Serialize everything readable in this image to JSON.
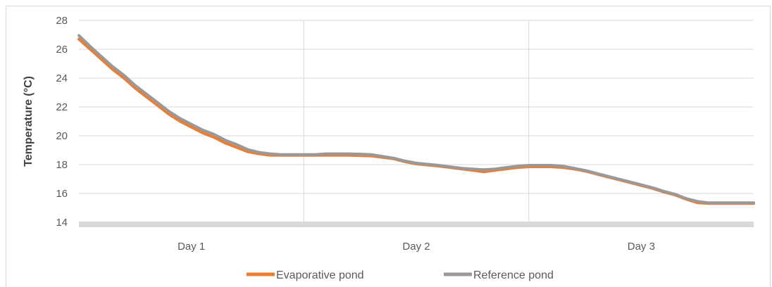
{
  "chart_data": {
    "type": "line",
    "title": "",
    "xlabel": "",
    "ylabel": "Temperature (°C)",
    "ylim": [
      14,
      28
    ],
    "yticks": [
      14,
      16,
      18,
      20,
      22,
      24,
      26,
      28
    ],
    "categories": [
      "Day 1",
      "Day 2",
      "Day 3"
    ],
    "xlim": [
      0,
      3
    ],
    "grid": true,
    "legend_position": "bottom",
    "series": [
      {
        "name": "Evaporative pond",
        "color": "#ed7d31",
        "x": [
          0.0,
          0.05,
          0.1,
          0.15,
          0.2,
          0.25,
          0.3,
          0.35,
          0.4,
          0.45,
          0.5,
          0.55,
          0.6,
          0.65,
          0.7,
          0.75,
          0.8,
          0.85,
          0.9,
          0.95,
          1.0,
          1.05,
          1.1,
          1.2,
          1.3,
          1.4,
          1.45,
          1.5,
          1.6,
          1.65,
          1.7,
          1.75,
          1.8,
          1.85,
          1.9,
          1.95,
          2.0,
          2.05,
          2.1,
          2.15,
          2.2,
          2.25,
          2.3,
          2.35,
          2.4,
          2.45,
          2.5,
          2.55,
          2.6,
          2.65,
          2.7,
          2.75,
          2.8,
          2.85,
          2.9,
          2.95,
          3.0
        ],
        "values": [
          26.7,
          26.0,
          25.3,
          24.6,
          24.0,
          23.3,
          22.7,
          22.1,
          21.5,
          21.0,
          20.6,
          20.2,
          19.9,
          19.5,
          19.2,
          18.9,
          18.75,
          18.65,
          18.65,
          18.65,
          18.65,
          18.65,
          18.65,
          18.65,
          18.6,
          18.4,
          18.2,
          18.05,
          17.9,
          17.8,
          17.7,
          17.6,
          17.5,
          17.6,
          17.7,
          17.8,
          17.85,
          17.85,
          17.85,
          17.8,
          17.7,
          17.55,
          17.35,
          17.15,
          16.95,
          16.75,
          16.55,
          16.35,
          16.1,
          15.9,
          15.6,
          15.35,
          15.3,
          15.3,
          15.3,
          15.3,
          15.3
        ]
      },
      {
        "name": "Reference pond",
        "color": "#999999",
        "x": [
          0.0,
          0.05,
          0.1,
          0.15,
          0.2,
          0.25,
          0.3,
          0.35,
          0.4,
          0.45,
          0.5,
          0.55,
          0.6,
          0.65,
          0.7,
          0.75,
          0.8,
          0.85,
          0.9,
          0.95,
          1.0,
          1.05,
          1.1,
          1.2,
          1.3,
          1.4,
          1.45,
          1.5,
          1.6,
          1.65,
          1.7,
          1.75,
          1.8,
          1.85,
          1.9,
          1.95,
          2.0,
          2.05,
          2.1,
          2.15,
          2.2,
          2.25,
          2.3,
          2.35,
          2.4,
          2.45,
          2.5,
          2.55,
          2.6,
          2.65,
          2.7,
          2.75,
          2.8,
          2.85,
          2.9,
          2.95,
          3.0
        ],
        "values": [
          26.95,
          26.2,
          25.5,
          24.8,
          24.2,
          23.5,
          22.9,
          22.3,
          21.7,
          21.2,
          20.8,
          20.4,
          20.1,
          19.7,
          19.4,
          19.05,
          18.85,
          18.75,
          18.7,
          18.7,
          18.7,
          18.7,
          18.75,
          18.75,
          18.7,
          18.45,
          18.25,
          18.1,
          17.95,
          17.85,
          17.75,
          17.7,
          17.65,
          17.7,
          17.8,
          17.9,
          17.95,
          17.95,
          17.95,
          17.9,
          17.75,
          17.6,
          17.4,
          17.2,
          17.0,
          16.8,
          16.6,
          16.4,
          16.15,
          15.95,
          15.65,
          15.45,
          15.35,
          15.35,
          15.35,
          15.35,
          15.35
        ]
      }
    ]
  }
}
